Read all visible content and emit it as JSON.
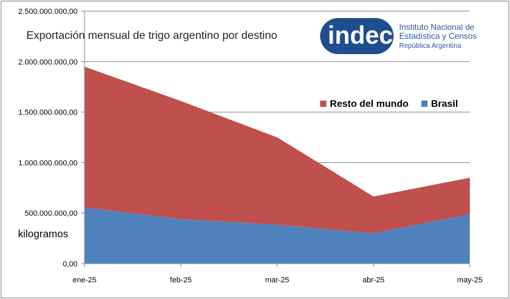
{
  "logo": {
    "word": "indec",
    "line1": "Instituto Nacional de",
    "line2": "Estadística y Censos",
    "line3": "República Argentina",
    "color": "#1f4e8f"
  },
  "chart_data": {
    "type": "area",
    "stacked": true,
    "title": "Exportación mensual de trigo argentino por destino",
    "ylabel": "kilogramos",
    "xlabel": "",
    "categories": [
      "ene-25",
      "feb-25",
      "mar-25",
      "abr-25",
      "may-25"
    ],
    "ylim": [
      0,
      2500000000
    ],
    "yticks": [
      0,
      500000000,
      1000000000,
      1500000000,
      2000000000,
      2500000000
    ],
    "ytick_labels": [
      "0,00",
      "500.000.000,00",
      "1.000.000.000,00",
      "1.500.000.000,00",
      "2.000.000.000,00",
      "2.500.000.000,00"
    ],
    "grid": true,
    "legend_position": "top-right",
    "series": [
      {
        "name": "Brasil",
        "color": "#4f81bd",
        "values": [
          555000000,
          440000000,
          385000000,
          300000000,
          490000000
        ]
      },
      {
        "name": "Resto del mundo",
        "color": "#c0504d",
        "values": [
          1395000000,
          1170000000,
          865000000,
          365000000,
          360000000
        ]
      }
    ],
    "legend_order": [
      1,
      0
    ]
  }
}
